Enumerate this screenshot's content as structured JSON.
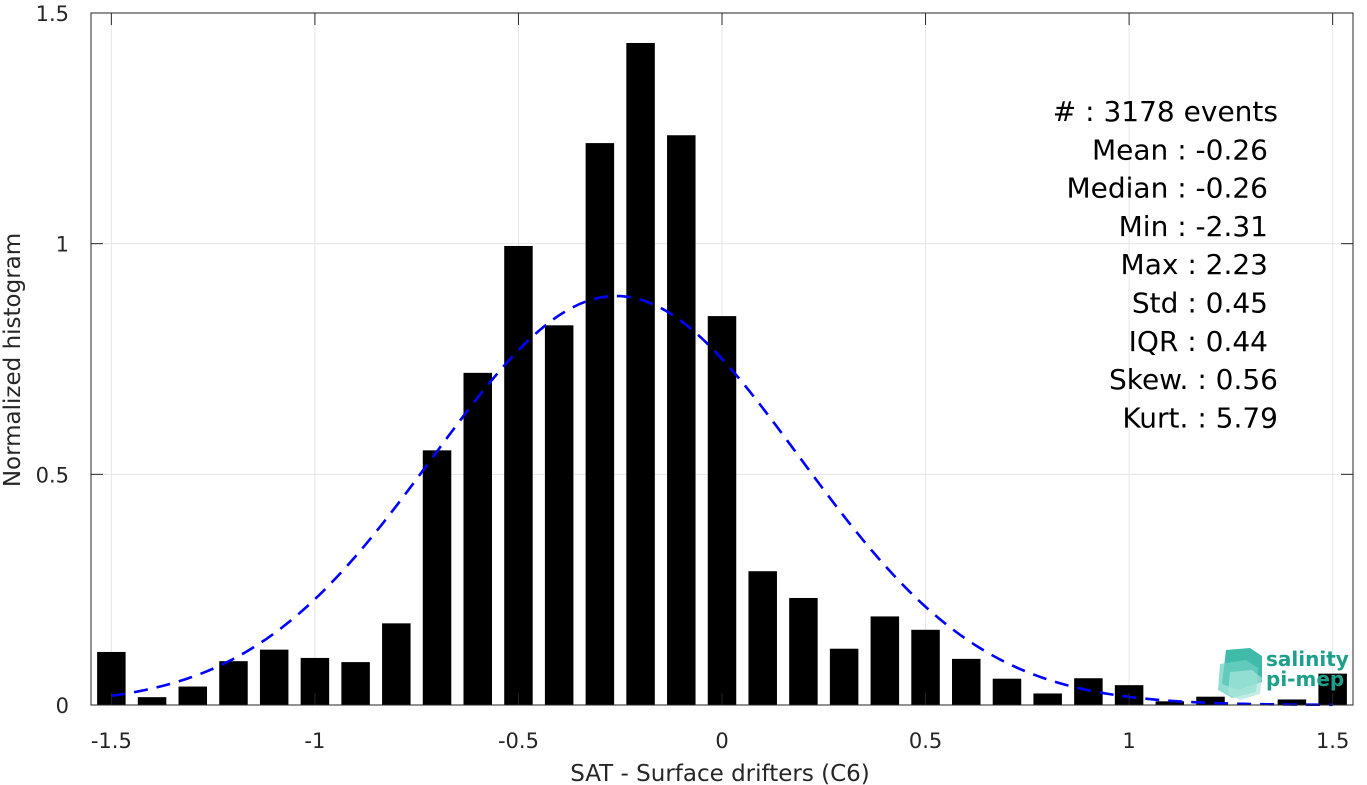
{
  "chart_data": {
    "type": "bar",
    "title": "",
    "xlabel": "SAT - Surface drifters (C6)",
    "ylabel": "Normalized histogram",
    "xlim": [
      -1.55,
      1.55
    ],
    "ylim": [
      0,
      1.5
    ],
    "xticks": [
      -1.5,
      -1,
      -0.5,
      0,
      0.5,
      1,
      1.5
    ],
    "xtick_labels": [
      "-1.5",
      "-1",
      "-0.5",
      "0",
      "0.5",
      "1",
      "1.5"
    ],
    "yticks": [
      0,
      0.5,
      1,
      1.5
    ],
    "ytick_labels": [
      "0",
      "0.5",
      "1",
      "1.5"
    ],
    "grid": true,
    "bar_width": 0.07,
    "x": [
      -1.5,
      -1.4,
      -1.3,
      -1.2,
      -1.1,
      -1.0,
      -0.9,
      -0.8,
      -0.7,
      -0.6,
      -0.5,
      -0.4,
      -0.3,
      -0.2,
      -0.1,
      0.0,
      0.1,
      0.2,
      0.3,
      0.4,
      0.5,
      0.6,
      0.7,
      0.8,
      0.9,
      1.0,
      1.1,
      1.2,
      1.3,
      1.4,
      1.5
    ],
    "values": [
      0.115,
      0.017,
      0.04,
      0.095,
      0.12,
      0.102,
      0.093,
      0.177,
      0.552,
      0.72,
      0.995,
      0.823,
      1.218,
      1.435,
      1.235,
      0.843,
      0.29,
      0.232,
      0.122,
      0.192,
      0.163,
      0.1,
      0.057,
      0.025,
      0.058,
      0.043,
      0.008,
      0.018,
      0.0,
      0.012,
      0.068
    ],
    "series": [
      {
        "name": "",
        "type": "gaussian-fit",
        "mean": -0.26,
        "std": 0.45,
        "color": "#0000ff",
        "style": "dashed"
      }
    ],
    "bar_color": "#000000",
    "annotations": [
      {
        "label": "#  ",
        "value": ": 3178 events"
      },
      {
        "label": "Mean ",
        "value": ": -0.26"
      },
      {
        "label": "Median ",
        "value": ": -0.26"
      },
      {
        "label": "Min ",
        "value": ": -2.31"
      },
      {
        "label": "Max ",
        "value": ": 2.23"
      },
      {
        "label": "Std ",
        "value": ": 0.45"
      },
      {
        "label": "IQR ",
        "value": ": 0.44"
      },
      {
        "label": "Skew. ",
        "value": ": 0.56"
      },
      {
        "label": "Kurt. ",
        "value": ": 5.79"
      }
    ],
    "annotation_placement": "top-right"
  },
  "logo": {
    "line1": "salinity",
    "line2": "pi-mep",
    "icon": "salinity-logo-icon",
    "color": "#1e9f8c"
  }
}
